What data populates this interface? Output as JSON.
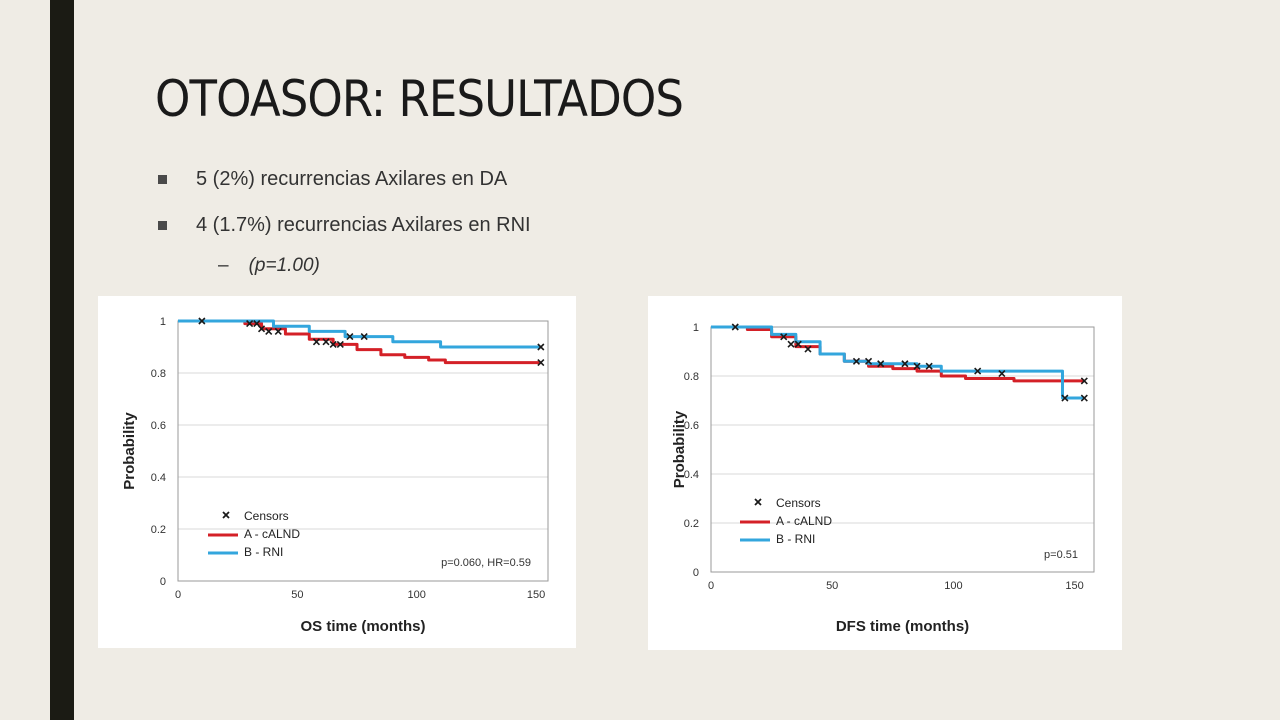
{
  "slide": {
    "title": "OTOASOR: RESULTADOS",
    "bullets": [
      "5 (2%) recurrencias Axilares en DA",
      "4 (1.7%) recurrencias Axilares en RNI"
    ],
    "sub_bullet": "(p=1.00)",
    "sub_bullet_marker": "–"
  },
  "colors": {
    "series_a": "#d42027",
    "series_b": "#33a6dd",
    "censor": "#1a1a1a"
  },
  "chart_data": [
    {
      "type": "line",
      "xlabel": "OS time (months)",
      "ylabel": "Probability",
      "xlim": [
        0,
        155
      ],
      "ylim": [
        0,
        1.0
      ],
      "xticks": [
        0,
        50,
        100,
        150
      ],
      "yticks": [
        0,
        0.2,
        0.4,
        0.6,
        0.8,
        1
      ],
      "ytick_labels": [
        "0",
        "0.2",
        "0.4",
        "0.6",
        "0.8",
        "1"
      ],
      "grid": true,
      "legend": "bottom-left",
      "legend_entries": [
        "Censors",
        "A - cALND",
        "B - RNI"
      ],
      "annotation": "p=0.060, HR=0.59",
      "series": [
        {
          "name": "A - cALND",
          "color": "#d42027",
          "x": [
            0,
            20,
            28,
            35,
            45,
            55,
            65,
            75,
            85,
            95,
            105,
            112,
            152
          ],
          "y": [
            1.0,
            1.0,
            0.99,
            0.97,
            0.95,
            0.93,
            0.91,
            0.89,
            0.87,
            0.86,
            0.85,
            0.84,
            0.84
          ]
        },
        {
          "name": "B - RNI",
          "color": "#33a6dd",
          "x": [
            0,
            25,
            40,
            55,
            70,
            90,
            110,
            152
          ],
          "y": [
            1.0,
            1.0,
            0.98,
            0.96,
            0.94,
            0.92,
            0.9,
            0.9
          ]
        }
      ],
      "censors": {
        "x": [
          10,
          30,
          33,
          35,
          38,
          42,
          58,
          62,
          65,
          68,
          72,
          78,
          152,
          152
        ],
        "y": [
          1.0,
          0.99,
          0.99,
          0.97,
          0.96,
          0.96,
          0.92,
          0.92,
          0.91,
          0.91,
          0.94,
          0.94,
          0.9,
          0.84
        ]
      }
    },
    {
      "type": "line",
      "xlabel": "DFS time (months)",
      "ylabel": "Probability",
      "xlim": [
        0,
        158
      ],
      "ylim": [
        0,
        1.0
      ],
      "xticks": [
        0,
        50,
        100,
        150
      ],
      "yticks": [
        0,
        0.2,
        0.4,
        0.6,
        0.8,
        1
      ],
      "ytick_labels": [
        "0",
        "0.2",
        "0.4",
        "0.6",
        "0.8",
        "1"
      ],
      "grid": true,
      "legend": "bottom-left",
      "legend_entries": [
        "Censors",
        "A - cALND",
        "B - RNI"
      ],
      "annotation": "p=0.51",
      "series": [
        {
          "name": "A - cALND",
          "color": "#d42027",
          "x": [
            0,
            15,
            25,
            35,
            45,
            55,
            65,
            75,
            85,
            95,
            105,
            115,
            125,
            154
          ],
          "y": [
            1.0,
            0.99,
            0.96,
            0.92,
            0.89,
            0.86,
            0.84,
            0.83,
            0.82,
            0.8,
            0.79,
            0.79,
            0.78,
            0.78
          ]
        },
        {
          "name": "B - RNI",
          "color": "#33a6dd",
          "x": [
            0,
            15,
            25,
            35,
            45,
            55,
            65,
            75,
            85,
            95,
            110,
            145,
            145,
            154
          ],
          "y": [
            1.0,
            1.0,
            0.97,
            0.94,
            0.89,
            0.86,
            0.85,
            0.85,
            0.84,
            0.82,
            0.82,
            0.82,
            0.71,
            0.71
          ]
        }
      ],
      "censors": {
        "x": [
          10,
          30,
          33,
          36,
          40,
          60,
          65,
          70,
          80,
          85,
          90,
          110,
          120,
          146,
          154,
          154
        ],
        "y": [
          1.0,
          0.96,
          0.93,
          0.93,
          0.91,
          0.86,
          0.86,
          0.85,
          0.85,
          0.84,
          0.84,
          0.82,
          0.81,
          0.71,
          0.78,
          0.71
        ]
      }
    }
  ]
}
